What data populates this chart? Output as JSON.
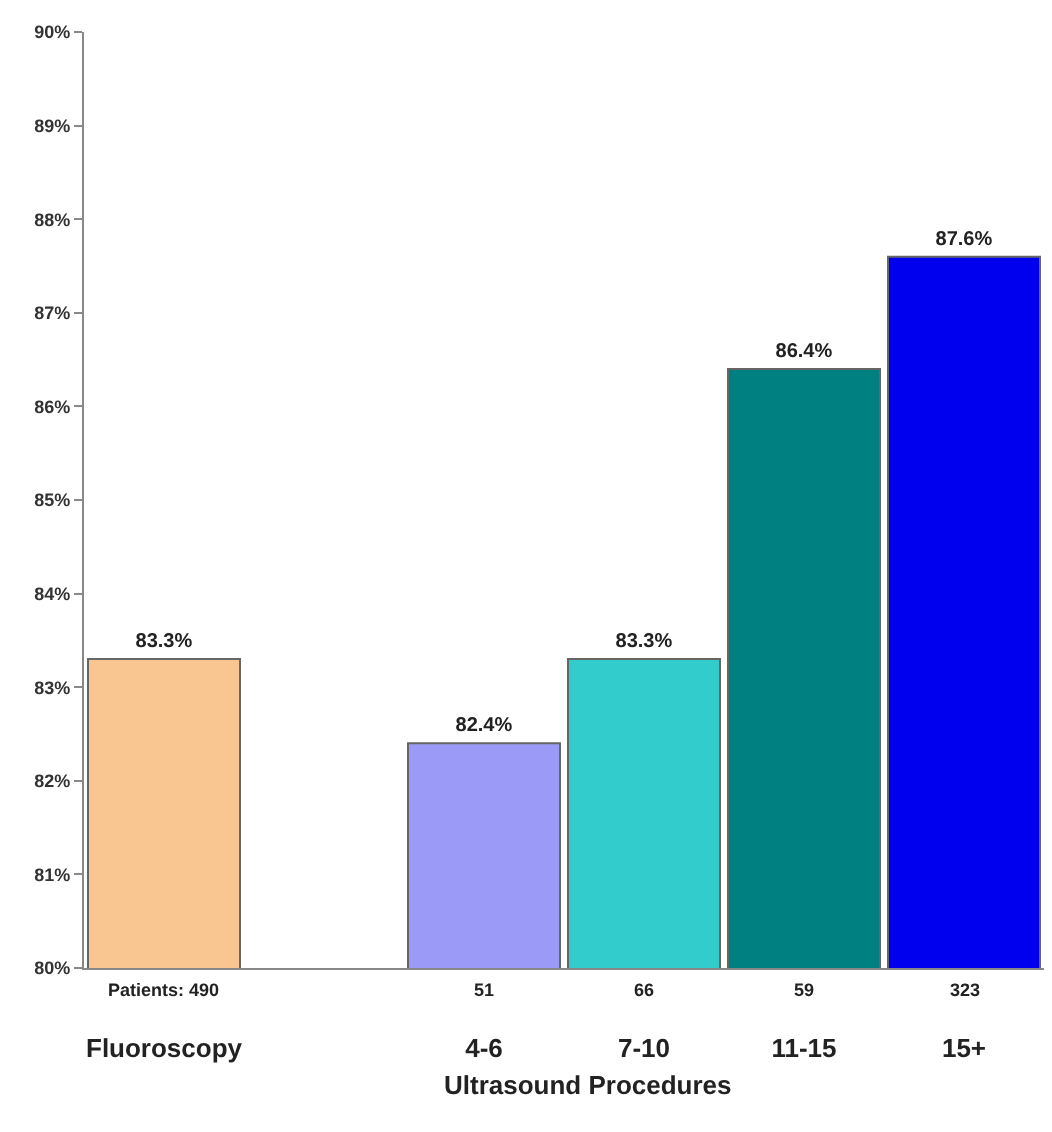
{
  "chart_data": {
    "type": "bar",
    "categories": [
      "Fluoroscopy",
      null,
      "4-6",
      "7-10",
      "11-15",
      "15+"
    ],
    "values": [
      83.3,
      null,
      82.4,
      83.3,
      86.4,
      87.6
    ],
    "colors": [
      "#f9c590",
      "#ffffff",
      "#9b9bf7",
      "#33cccc",
      "#008080",
      "#0000ee"
    ],
    "value_labels": [
      "83.3%",
      null,
      "82.4%",
      "83.3%",
      "86.4%",
      "87.6%"
    ],
    "ylim": [
      80,
      90
    ],
    "yticks": [
      {
        "value": 80,
        "label": "80%"
      },
      {
        "value": 81,
        "label": "81%"
      },
      {
        "value": 82,
        "label": "82%"
      },
      {
        "value": 83,
        "label": "83%"
      },
      {
        "value": 84,
        "label": "84%"
      },
      {
        "value": 85,
        "label": "85%"
      },
      {
        "value": 86,
        "label": "86%"
      },
      {
        "value": 87,
        "label": "87%"
      },
      {
        "value": 88,
        "label": "88%"
      },
      {
        "value": 89,
        "label": "89%"
      },
      {
        "value": 90,
        "label": "90%"
      }
    ],
    "annotations": [
      "Patients: 490",
      "51",
      "66",
      "59",
      "323",
      "Ultrasound Procedures"
    ]
  }
}
